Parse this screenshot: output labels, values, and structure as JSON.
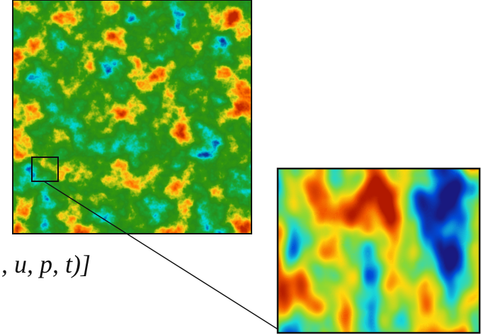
{
  "formula": ", u, p, t)]"
}
